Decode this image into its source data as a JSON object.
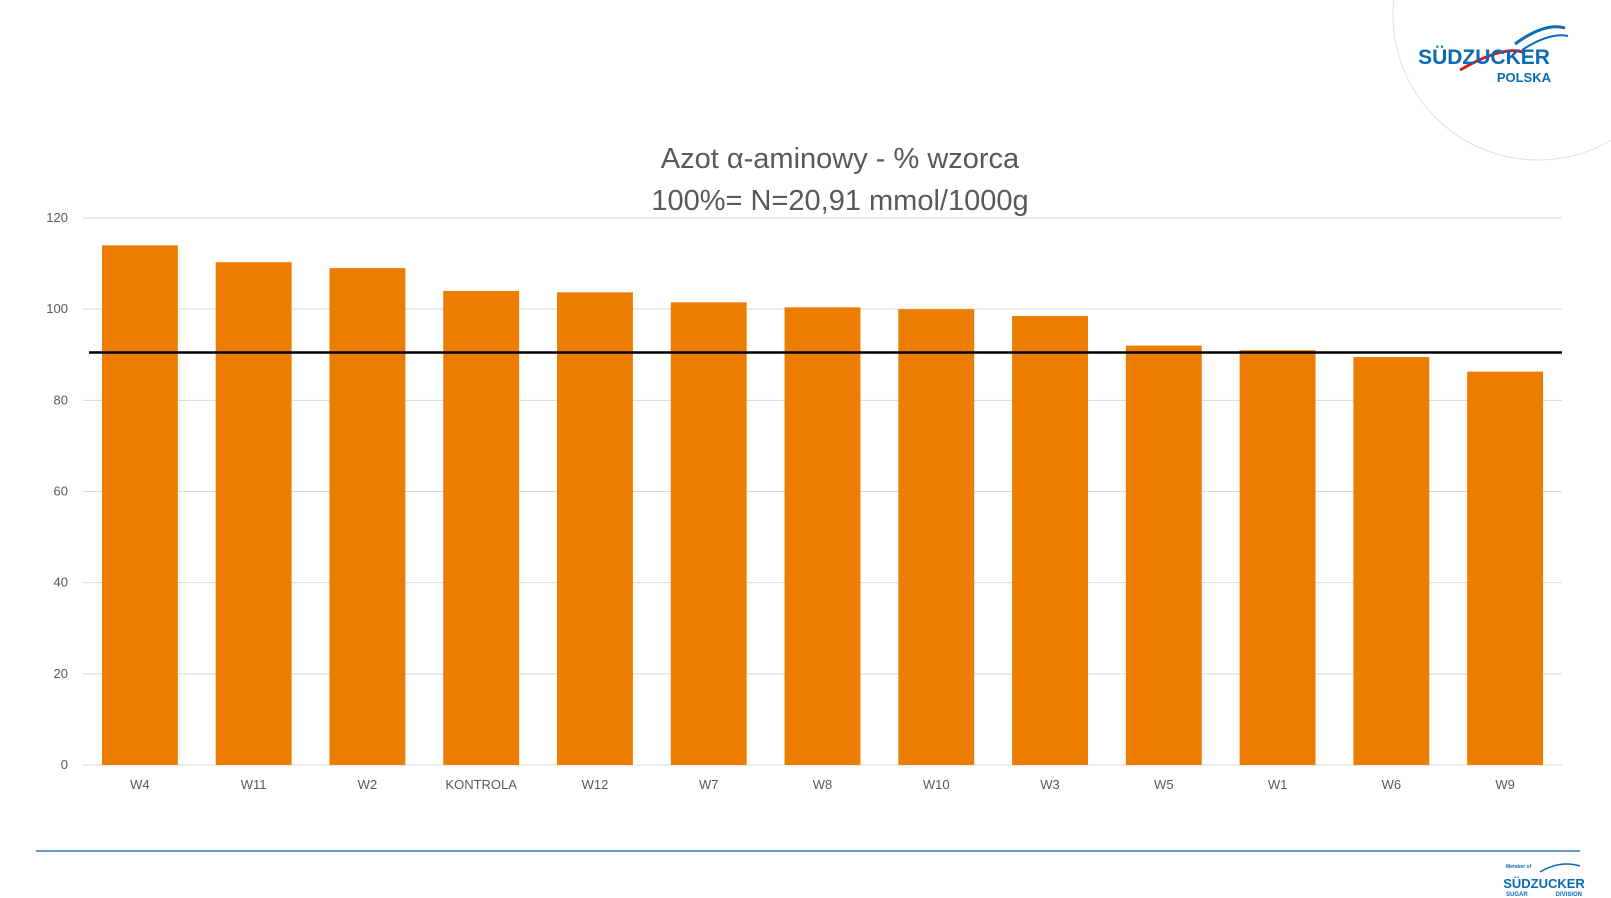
{
  "logo": {
    "brand": "SÜDZUCKER",
    "sub": "POLSKA"
  },
  "footer_logo": {
    "member": "Member of",
    "brand": "SÜDZUCKER",
    "left": "SUGAR",
    "right": "DIVISION"
  },
  "colors": {
    "bar": "#ED7D00",
    "reference_line": "#000000",
    "grid": "#D9D9D9",
    "brand_blue": "#0A6AB5",
    "brand_red": "#D7191C",
    "footer_rule": "#2E7CC4"
  },
  "chart_data": {
    "type": "bar",
    "title_lines": [
      "Azot α-aminowy  - % wzorca",
      "100%= N=20,91 mmol/1000g"
    ],
    "categories": [
      "W4",
      "W11",
      "W2",
      "KONTROLA",
      "W12",
      "W7",
      "W8",
      "W10",
      "W3",
      "W5",
      "W1",
      "W6",
      "W9"
    ],
    "values": [
      114,
      110.3,
      109,
      104,
      103.7,
      101.5,
      100.4,
      100,
      98.5,
      92,
      91,
      89.5,
      86.3
    ],
    "yticks": [
      0,
      20,
      40,
      60,
      80,
      100,
      120
    ],
    "ylim": [
      0,
      120
    ],
    "reference_line": 90.5,
    "grid": true,
    "legend": "none"
  }
}
